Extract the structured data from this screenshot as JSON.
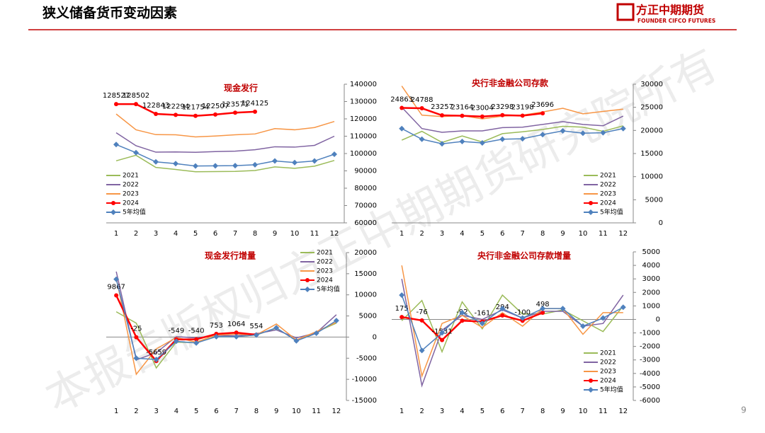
{
  "header": {
    "title": "狭义储备货币变动因素",
    "logo_name": "方正中期期货",
    "logo_en": "FOUNDER CIFCO FUTURES"
  },
  "page_number": "9",
  "watermark": "本报告版权归方正中期期货研究院所有",
  "chart_data": [
    {
      "type": "line",
      "title": "现金发行",
      "categories": [
        "1",
        "2",
        "3",
        "4",
        "5",
        "6",
        "7",
        "8",
        "9",
        "10",
        "11",
        "12"
      ],
      "ylim": [
        60000,
        140000
      ],
      "yticks": [
        60000,
        70000,
        80000,
        90000,
        100000,
        110000,
        120000,
        130000,
        140000
      ],
      "legend": "lower-left",
      "series": [
        {
          "name": "2021",
          "color": "#9bbb59",
          "values": [
            95800,
            99000,
            92000,
            90800,
            89500,
            89600,
            89700,
            90200,
            92300,
            91500,
            92700,
            96000
          ]
        },
        {
          "name": "2022",
          "color": "#8064a2",
          "values": [
            112000,
            104500,
            100800,
            100900,
            100700,
            101100,
            101400,
            102200,
            103900,
            103700,
            104700,
            110000
          ]
        },
        {
          "name": "2023",
          "color": "#f79646",
          "values": [
            122800,
            113700,
            110900,
            110800,
            109600,
            110100,
            110800,
            111300,
            114400,
            113700,
            115000,
            118500
          ]
        },
        {
          "name": "2024",
          "color": "#ff0000",
          "marker": "circle",
          "data_labels": true,
          "values": [
            128527,
            128502,
            122843,
            122294,
            121754,
            122507,
            123571,
            124125,
            null,
            null,
            null,
            null
          ]
        },
        {
          "name": "5年均值",
          "color": "#4f81bd",
          "marker": "diamond",
          "values": [
            105200,
            100500,
            95200,
            94200,
            92800,
            92900,
            93000,
            93500,
            95700,
            94800,
            95700,
            99600
          ]
        }
      ]
    },
    {
      "type": "line",
      "title": "央行非金融公司存款",
      "categories": [
        "1",
        "2",
        "3",
        "4",
        "5",
        "6",
        "7",
        "8",
        "9",
        "10",
        "11",
        "12"
      ],
      "ylim": [
        0,
        30000
      ],
      "yticks": [
        0,
        5000,
        10000,
        15000,
        20000,
        25000,
        30000
      ],
      "legend": "lower-right",
      "series": [
        {
          "name": "2021",
          "color": "#9bbb59",
          "values": [
            17900,
            19800,
            17400,
            18800,
            17500,
            19300,
            19700,
            20200,
            20900,
            20700,
            19800,
            21000
          ]
        },
        {
          "name": "2022",
          "color": "#8064a2",
          "values": [
            25000,
            20400,
            19600,
            19900,
            19900,
            20600,
            20700,
            21300,
            21900,
            21300,
            21000,
            23100
          ]
        },
        {
          "name": "2023",
          "color": "#f79646",
          "values": [
            29600,
            23300,
            23000,
            23200,
            22500,
            23100,
            23300,
            24000,
            24800,
            23600,
            24100,
            24600
          ]
        },
        {
          "name": "2024",
          "color": "#ff0000",
          "marker": "circle",
          "data_labels": true,
          "values": [
            24863,
            24788,
            23257,
            23164,
            23004,
            23298,
            23198,
            23696,
            null,
            null,
            null,
            null
          ]
        },
        {
          "name": "5年均值",
          "color": "#4f81bd",
          "marker": "diamond",
          "values": [
            20400,
            18100,
            17100,
            17600,
            17300,
            18100,
            18200,
            19100,
            19900,
            19400,
            19500,
            20400
          ]
        }
      ]
    },
    {
      "type": "line",
      "title": "现金发行增量",
      "categories": [
        "1",
        "2",
        "3",
        "4",
        "5",
        "6",
        "7",
        "8",
        "9",
        "10",
        "11",
        "12"
      ],
      "ylim": [
        -15000,
        20000
      ],
      "yticks": [
        -15000,
        -10000,
        -5000,
        0,
        5000,
        10000,
        15000,
        20000
      ],
      "legend": "upper-right",
      "series": [
        {
          "name": "2021",
          "color": "#9bbb59",
          "values": [
            6000,
            3300,
            -7300,
            -1200,
            -1300,
            100,
            100,
            500,
            2100,
            -800,
            1200,
            3300
          ]
        },
        {
          "name": "2022",
          "color": "#8064a2",
          "values": [
            15500,
            -5400,
            -3700,
            100,
            -200,
            400,
            300,
            800,
            1700,
            -200,
            1000,
            5300
          ]
        },
        {
          "name": "2023",
          "color": "#f79646",
          "values": [
            14000,
            -8800,
            -2800,
            -100,
            -1200,
            500,
            700,
            500,
            3100,
            -700,
            1300,
            3500
          ]
        },
        {
          "name": "2024",
          "color": "#ff0000",
          "marker": "circle",
          "data_labels": true,
          "values": [
            9867,
            -25,
            -5659,
            -549,
            -540,
            753,
            1064,
            554,
            null,
            null,
            null,
            null
          ]
        },
        {
          "name": "5年均值",
          "color": "#4f81bd",
          "marker": "diamond",
          "values": [
            13700,
            -5000,
            -5300,
            -1000,
            -1400,
            100,
            100,
            500,
            2200,
            -900,
            900,
            3900
          ]
        }
      ]
    },
    {
      "type": "line",
      "title": "央行非金融公司存款增量",
      "categories": [
        "1",
        "2",
        "3",
        "4",
        "5",
        "6",
        "7",
        "8",
        "9",
        "10",
        "11",
        "12"
      ],
      "ylim": [
        -6000,
        5000
      ],
      "yticks": [
        -6000,
        -5000,
        -4000,
        -3000,
        -2000,
        -1000,
        0,
        1000,
        2000,
        3000,
        4000,
        5000
      ],
      "legend": "lower-right",
      "series": [
        {
          "name": "2021",
          "color": "#9bbb59",
          "values": [
            -100,
            1400,
            -2400,
            1300,
            -700,
            1800,
            400,
            400,
            700,
            -100,
            -900,
            1000
          ]
        },
        {
          "name": "2022",
          "color": "#8064a2",
          "values": [
            3000,
            -4900,
            -800,
            300,
            0,
            700,
            100,
            600,
            600,
            -500,
            -300,
            1800
          ]
        },
        {
          "name": "2023",
          "color": "#f79646",
          "values": [
            4000,
            -4200,
            -300,
            300,
            -600,
            500,
            -500,
            800,
            800,
            -1100,
            500,
            500
          ]
        },
        {
          "name": "2024",
          "color": "#ff0000",
          "marker": "circle",
          "data_labels": true,
          "values": [
            175,
            -76,
            -1531,
            -92,
            -161,
            294,
            -100,
            498,
            null,
            null,
            null,
            null
          ]
        },
        {
          "name": "5年均值",
          "color": "#4f81bd",
          "marker": "diamond",
          "values": [
            1800,
            -2300,
            -1000,
            500,
            -300,
            800,
            100,
            800,
            800,
            -500,
            100,
            900
          ]
        }
      ]
    }
  ]
}
